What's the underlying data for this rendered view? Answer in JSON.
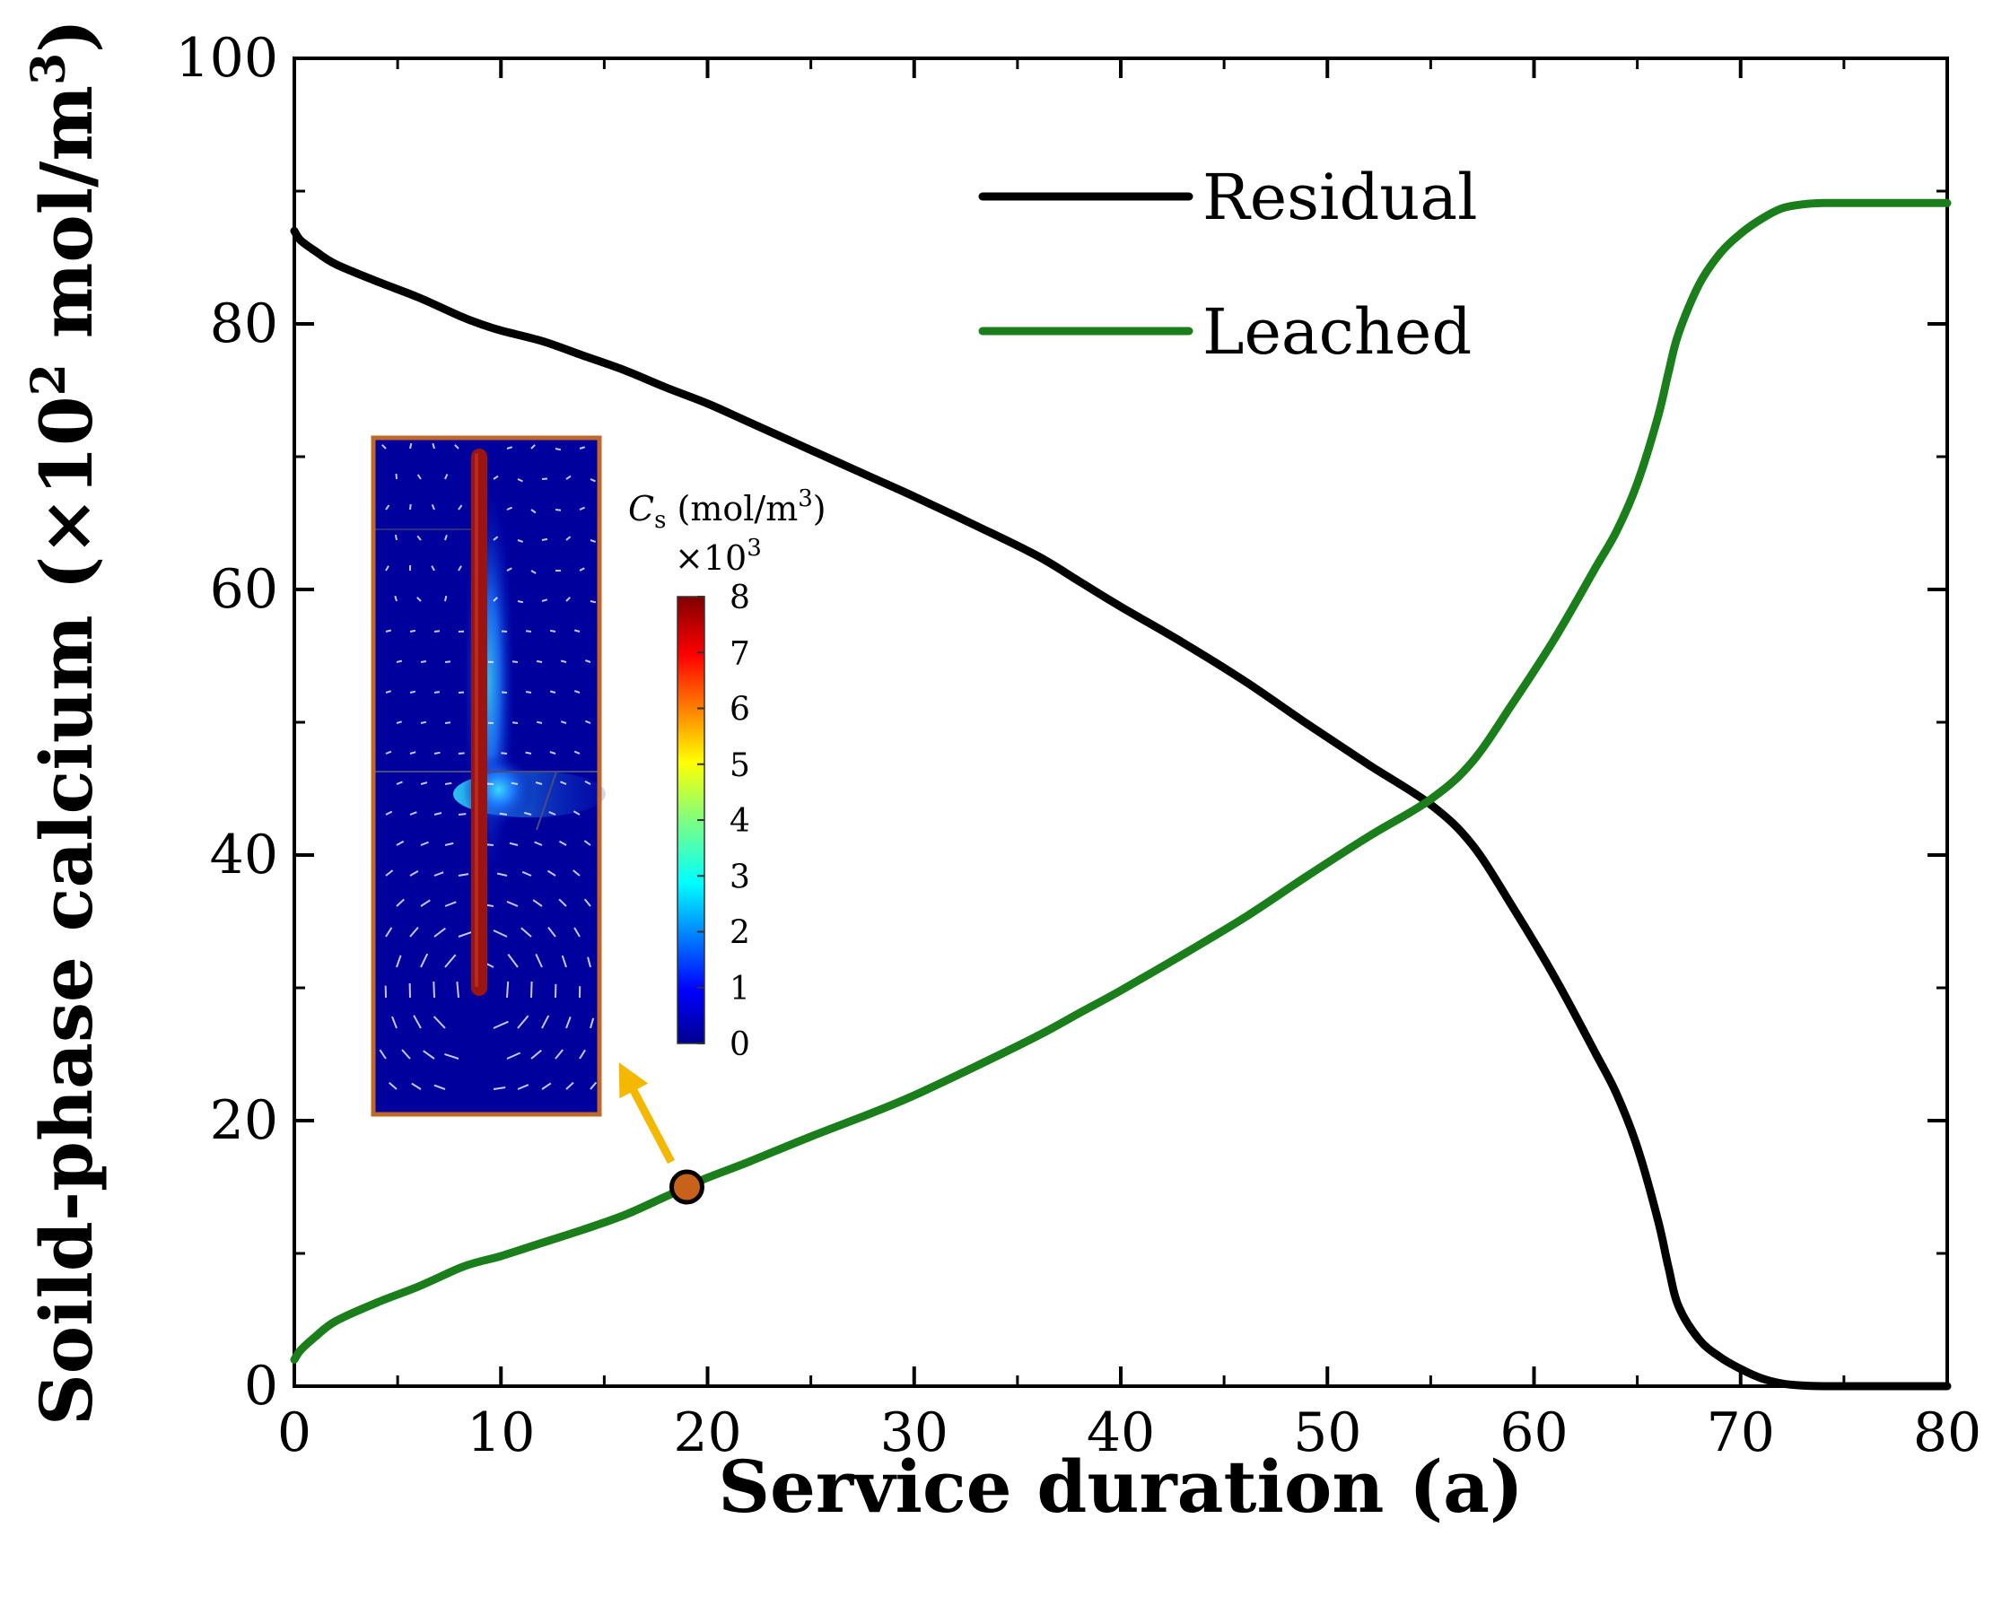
{
  "chart_data": {
    "type": "line",
    "xlabel": "Service duration (a)",
    "ylabel": {
      "prefix": "Soild-phase calcium (×10",
      "exp": "2",
      "mid": " mol/m",
      "exp2": "3",
      "suffix": ")"
    },
    "xlim": [
      0,
      80
    ],
    "ylim": [
      0,
      100
    ],
    "xticks": [
      "0",
      "10",
      "20",
      "30",
      "40",
      "50",
      "60",
      "70",
      "80"
    ],
    "yticks": [
      "0",
      "20",
      "40",
      "60",
      "80",
      "100"
    ],
    "legend_position": "top-right",
    "series": [
      {
        "name": "Residual",
        "color": "#000000",
        "x": [
          0,
          0.3,
          1,
          2,
          4,
          6,
          8,
          9,
          10,
          12,
          14,
          16,
          18,
          20,
          22,
          25,
          28,
          30,
          33,
          36,
          38,
          40,
          43,
          46,
          49,
          52,
          55,
          57,
          59,
          61,
          63,
          64,
          65,
          66,
          66.5,
          67,
          68,
          69,
          70,
          71,
          72,
          73,
          74,
          76,
          80
        ],
        "y": [
          87,
          86.3,
          85.5,
          84.5,
          83.2,
          82.0,
          80.6,
          80.0,
          79.5,
          78.7,
          77.6,
          76.5,
          75.2,
          74.0,
          72.6,
          70.5,
          68.4,
          67.0,
          64.8,
          62.5,
          60.6,
          58.7,
          56.0,
          53.1,
          49.9,
          46.8,
          43.8,
          40.8,
          36.0,
          30.8,
          25.0,
          22.0,
          18.0,
          12.5,
          9.0,
          6.0,
          3.5,
          2.2,
          1.3,
          0.6,
          0.2,
          0.05,
          0,
          0,
          0
        ]
      },
      {
        "name": "Leached",
        "color": "#1a7f1a",
        "x": [
          0,
          0.3,
          1,
          2,
          4,
          6,
          8,
          9,
          10,
          12,
          14,
          16,
          18,
          19,
          20,
          22,
          25,
          28,
          30,
          33,
          36,
          38,
          40,
          43,
          46,
          49,
          52,
          55,
          57,
          59,
          61,
          63,
          64,
          65,
          66,
          66.5,
          67,
          68,
          69,
          70,
          71,
          72,
          73,
          74,
          76,
          80
        ],
        "y": [
          2.0,
          2.7,
          3.7,
          4.9,
          6.3,
          7.5,
          8.9,
          9.4,
          9.8,
          10.8,
          11.8,
          12.9,
          14.3,
          15.0,
          15.7,
          16.9,
          18.8,
          20.6,
          21.9,
          24.1,
          26.4,
          28.1,
          29.8,
          32.5,
          35.3,
          38.4,
          41.4,
          44.2,
          47.0,
          51.5,
          56.3,
          61.7,
          64.4,
          68.0,
          73.0,
          76.3,
          79.3,
          83.0,
          85.3,
          86.8,
          87.9,
          88.7,
          89.0,
          89.1,
          89.1,
          89.1
        ]
      }
    ],
    "highlight_point": {
      "x": 19,
      "y": 15,
      "color": "#c8621a"
    },
    "inset": {
      "description_label": "Cs distribution",
      "colorbar_title_var": "C",
      "colorbar_title_sub": "s",
      "colorbar_title_unit": " (mol/m",
      "colorbar_title_unit_exp": "3",
      "colorbar_title_close": ")",
      "colorbar_scale_prefix": "×10",
      "colorbar_scale_exp": "3",
      "colorbar_ticks": [
        "0",
        "1",
        "2",
        "3",
        "4",
        "5",
        "6",
        "7",
        "8"
      ],
      "frame_color": "#c0682a",
      "arrow_color": "#f5b800"
    }
  }
}
